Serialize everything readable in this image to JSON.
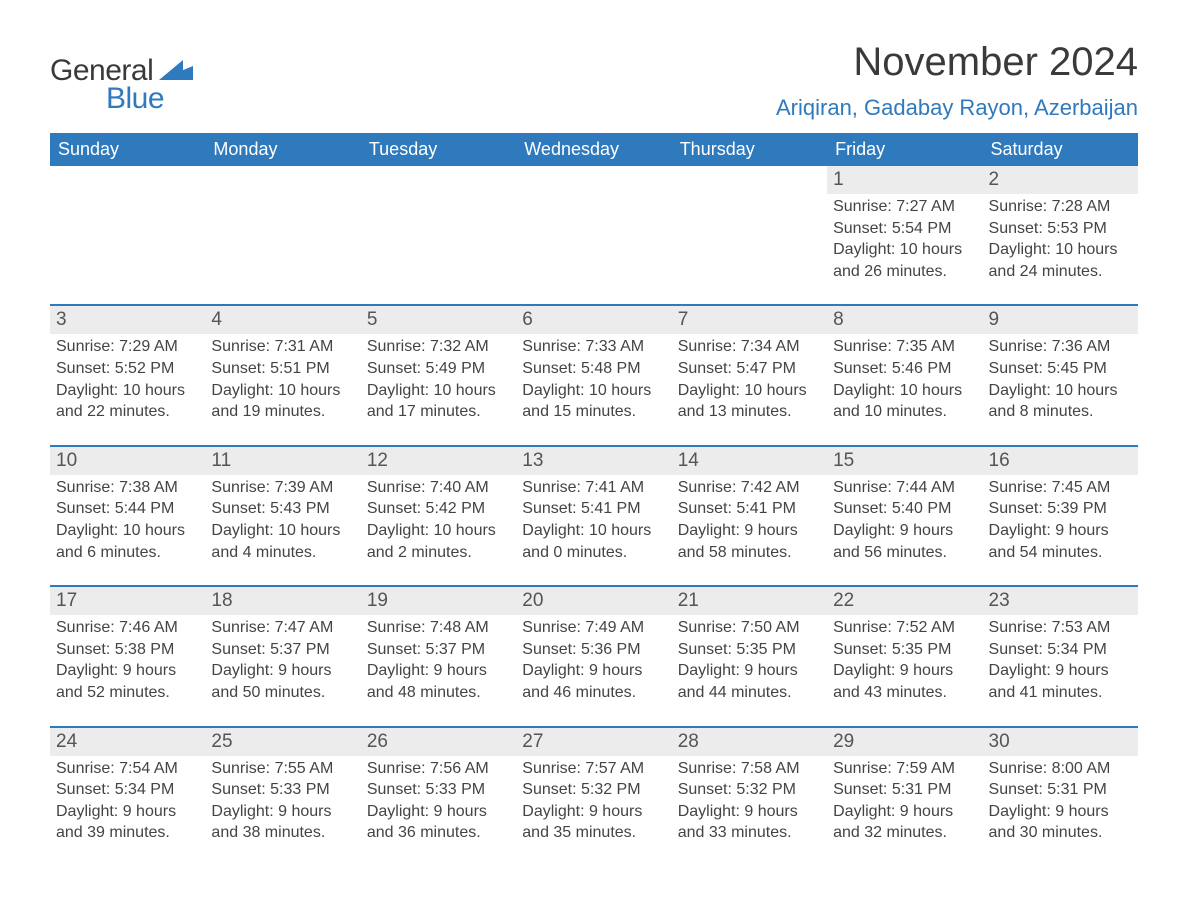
{
  "brand": {
    "word1": "General",
    "word2": "Blue",
    "accent_color": "#2f79bd"
  },
  "title": {
    "month_year": "November 2024",
    "location": "Ariqiran, Gadabay Rayon, Azerbaijan",
    "title_fontsize": 40,
    "location_fontsize": 22,
    "text_color": "#3a3a3a"
  },
  "calendar": {
    "header_bg": "#2f79bd",
    "header_text_color": "#ffffff",
    "row_divider_color": "#2f79bd",
    "daynum_bg": "#ececec",
    "body_bg": "#ffffff",
    "weekday_labels": [
      "Sunday",
      "Monday",
      "Tuesday",
      "Wednesday",
      "Thursday",
      "Friday",
      "Saturday"
    ],
    "weeks": [
      [
        {
          "n": "",
          "sunrise": "",
          "sunset": "",
          "daylight": ""
        },
        {
          "n": "",
          "sunrise": "",
          "sunset": "",
          "daylight": ""
        },
        {
          "n": "",
          "sunrise": "",
          "sunset": "",
          "daylight": ""
        },
        {
          "n": "",
          "sunrise": "",
          "sunset": "",
          "daylight": ""
        },
        {
          "n": "",
          "sunrise": "",
          "sunset": "",
          "daylight": ""
        },
        {
          "n": "1",
          "sunrise": "Sunrise: 7:27 AM",
          "sunset": "Sunset: 5:54 PM",
          "daylight": "Daylight: 10 hours and 26 minutes."
        },
        {
          "n": "2",
          "sunrise": "Sunrise: 7:28 AM",
          "sunset": "Sunset: 5:53 PM",
          "daylight": "Daylight: 10 hours and 24 minutes."
        }
      ],
      [
        {
          "n": "3",
          "sunrise": "Sunrise: 7:29 AM",
          "sunset": "Sunset: 5:52 PM",
          "daylight": "Daylight: 10 hours and 22 minutes."
        },
        {
          "n": "4",
          "sunrise": "Sunrise: 7:31 AM",
          "sunset": "Sunset: 5:51 PM",
          "daylight": "Daylight: 10 hours and 19 minutes."
        },
        {
          "n": "5",
          "sunrise": "Sunrise: 7:32 AM",
          "sunset": "Sunset: 5:49 PM",
          "daylight": "Daylight: 10 hours and 17 minutes."
        },
        {
          "n": "6",
          "sunrise": "Sunrise: 7:33 AM",
          "sunset": "Sunset: 5:48 PM",
          "daylight": "Daylight: 10 hours and 15 minutes."
        },
        {
          "n": "7",
          "sunrise": "Sunrise: 7:34 AM",
          "sunset": "Sunset: 5:47 PM",
          "daylight": "Daylight: 10 hours and 13 minutes."
        },
        {
          "n": "8",
          "sunrise": "Sunrise: 7:35 AM",
          "sunset": "Sunset: 5:46 PM",
          "daylight": "Daylight: 10 hours and 10 minutes."
        },
        {
          "n": "9",
          "sunrise": "Sunrise: 7:36 AM",
          "sunset": "Sunset: 5:45 PM",
          "daylight": "Daylight: 10 hours and 8 minutes."
        }
      ],
      [
        {
          "n": "10",
          "sunrise": "Sunrise: 7:38 AM",
          "sunset": "Sunset: 5:44 PM",
          "daylight": "Daylight: 10 hours and 6 minutes."
        },
        {
          "n": "11",
          "sunrise": "Sunrise: 7:39 AM",
          "sunset": "Sunset: 5:43 PM",
          "daylight": "Daylight: 10 hours and 4 minutes."
        },
        {
          "n": "12",
          "sunrise": "Sunrise: 7:40 AM",
          "sunset": "Sunset: 5:42 PM",
          "daylight": "Daylight: 10 hours and 2 minutes."
        },
        {
          "n": "13",
          "sunrise": "Sunrise: 7:41 AM",
          "sunset": "Sunset: 5:41 PM",
          "daylight": "Daylight: 10 hours and 0 minutes."
        },
        {
          "n": "14",
          "sunrise": "Sunrise: 7:42 AM",
          "sunset": "Sunset: 5:41 PM",
          "daylight": "Daylight: 9 hours and 58 minutes."
        },
        {
          "n": "15",
          "sunrise": "Sunrise: 7:44 AM",
          "sunset": "Sunset: 5:40 PM",
          "daylight": "Daylight: 9 hours and 56 minutes."
        },
        {
          "n": "16",
          "sunrise": "Sunrise: 7:45 AM",
          "sunset": "Sunset: 5:39 PM",
          "daylight": "Daylight: 9 hours and 54 minutes."
        }
      ],
      [
        {
          "n": "17",
          "sunrise": "Sunrise: 7:46 AM",
          "sunset": "Sunset: 5:38 PM",
          "daylight": "Daylight: 9 hours and 52 minutes."
        },
        {
          "n": "18",
          "sunrise": "Sunrise: 7:47 AM",
          "sunset": "Sunset: 5:37 PM",
          "daylight": "Daylight: 9 hours and 50 minutes."
        },
        {
          "n": "19",
          "sunrise": "Sunrise: 7:48 AM",
          "sunset": "Sunset: 5:37 PM",
          "daylight": "Daylight: 9 hours and 48 minutes."
        },
        {
          "n": "20",
          "sunrise": "Sunrise: 7:49 AM",
          "sunset": "Sunset: 5:36 PM",
          "daylight": "Daylight: 9 hours and 46 minutes."
        },
        {
          "n": "21",
          "sunrise": "Sunrise: 7:50 AM",
          "sunset": "Sunset: 5:35 PM",
          "daylight": "Daylight: 9 hours and 44 minutes."
        },
        {
          "n": "22",
          "sunrise": "Sunrise: 7:52 AM",
          "sunset": "Sunset: 5:35 PM",
          "daylight": "Daylight: 9 hours and 43 minutes."
        },
        {
          "n": "23",
          "sunrise": "Sunrise: 7:53 AM",
          "sunset": "Sunset: 5:34 PM",
          "daylight": "Daylight: 9 hours and 41 minutes."
        }
      ],
      [
        {
          "n": "24",
          "sunrise": "Sunrise: 7:54 AM",
          "sunset": "Sunset: 5:34 PM",
          "daylight": "Daylight: 9 hours and 39 minutes."
        },
        {
          "n": "25",
          "sunrise": "Sunrise: 7:55 AM",
          "sunset": "Sunset: 5:33 PM",
          "daylight": "Daylight: 9 hours and 38 minutes."
        },
        {
          "n": "26",
          "sunrise": "Sunrise: 7:56 AM",
          "sunset": "Sunset: 5:33 PM",
          "daylight": "Daylight: 9 hours and 36 minutes."
        },
        {
          "n": "27",
          "sunrise": "Sunrise: 7:57 AM",
          "sunset": "Sunset: 5:32 PM",
          "daylight": "Daylight: 9 hours and 35 minutes."
        },
        {
          "n": "28",
          "sunrise": "Sunrise: 7:58 AM",
          "sunset": "Sunset: 5:32 PM",
          "daylight": "Daylight: 9 hours and 33 minutes."
        },
        {
          "n": "29",
          "sunrise": "Sunrise: 7:59 AM",
          "sunset": "Sunset: 5:31 PM",
          "daylight": "Daylight: 9 hours and 32 minutes."
        },
        {
          "n": "30",
          "sunrise": "Sunrise: 8:00 AM",
          "sunset": "Sunset: 5:31 PM",
          "daylight": "Daylight: 9 hours and 30 minutes."
        }
      ]
    ]
  }
}
